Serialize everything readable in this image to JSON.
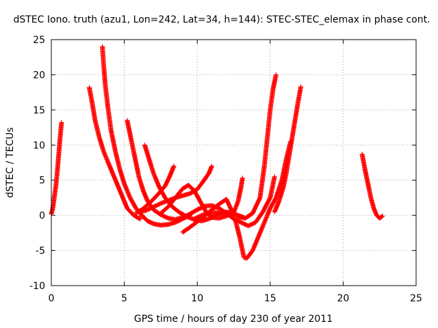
{
  "chart_data": {
    "type": "scatter",
    "title": "dSTEC Iono. truth (azu1, Lon=242, Lat=34, h=144): STEC-STEC_elemax in phase cont.",
    "xlabel": "GPS time / hours of day 230 of year 2011",
    "ylabel": "dSTEC  / TECUs",
    "xlim": [
      0,
      25
    ],
    "ylim": [
      -10,
      25
    ],
    "xticks": [
      0,
      5,
      10,
      15,
      20,
      25
    ],
    "yticks": [
      -10,
      -5,
      0,
      5,
      10,
      15,
      20,
      25
    ],
    "grid": true,
    "marker": "plus",
    "color": "#ff0000",
    "series": [
      {
        "points": [
          [
            0.0,
            0.2
          ],
          [
            0.1,
            1.0
          ],
          [
            0.2,
            2.5
          ],
          [
            0.3,
            4.0
          ],
          [
            0.4,
            6.0
          ],
          [
            0.5,
            8.5
          ],
          [
            0.6,
            11.0
          ],
          [
            0.7,
            13.2
          ]
        ]
      },
      {
        "points": [
          [
            2.6,
            18.2
          ],
          [
            2.8,
            16.0
          ],
          [
            3.0,
            13.5
          ],
          [
            3.3,
            11.0
          ],
          [
            3.6,
            9.0
          ],
          [
            4.0,
            7.0
          ],
          [
            4.3,
            5.5
          ],
          [
            4.6,
            4.0
          ],
          [
            4.9,
            2.5
          ],
          [
            5.2,
            1.0
          ],
          [
            5.6,
            0.1
          ],
          [
            5.9,
            -0.3
          ],
          [
            6.1,
            -0.5
          ]
        ]
      },
      {
        "points": [
          [
            3.5,
            24.0
          ],
          [
            3.6,
            21.0
          ],
          [
            3.7,
            18.5
          ],
          [
            3.9,
            15.0
          ],
          [
            4.1,
            12.0
          ],
          [
            4.4,
            9.0
          ],
          [
            4.7,
            6.5
          ],
          [
            5.0,
            4.5
          ],
          [
            5.4,
            2.5
          ],
          [
            5.8,
            1.0
          ],
          [
            6.2,
            0.0
          ],
          [
            6.6,
            -0.8
          ],
          [
            7.0,
            -1.2
          ],
          [
            7.5,
            -1.4
          ],
          [
            8.0,
            -1.3
          ],
          [
            8.5,
            -1.0
          ],
          [
            9.0,
            -0.5
          ],
          [
            9.5,
            0.0
          ]
        ]
      },
      {
        "points": [
          [
            5.2,
            13.5
          ],
          [
            5.4,
            11.5
          ],
          [
            5.6,
            9.5
          ],
          [
            5.8,
            7.5
          ],
          [
            6.0,
            5.5
          ],
          [
            6.3,
            3.5
          ],
          [
            6.6,
            2.0
          ],
          [
            7.0,
            0.8
          ],
          [
            7.5,
            0.1
          ],
          [
            8.0,
            -0.4
          ],
          [
            8.5,
            -0.6
          ],
          [
            9.0,
            -0.3
          ],
          [
            9.5,
            0.2
          ],
          [
            10.0,
            0.8
          ],
          [
            10.5,
            1.3
          ],
          [
            11.0,
            1.4
          ],
          [
            11.5,
            1.0
          ],
          [
            12.0,
            0.3
          ],
          [
            12.5,
            -0.5
          ],
          [
            13.0,
            -1.0
          ],
          [
            13.5,
            -1.5
          ],
          [
            14.0,
            -1.0
          ],
          [
            14.5,
            0.5
          ],
          [
            15.0,
            2.5
          ],
          [
            15.3,
            5.5
          ]
        ]
      },
      {
        "points": [
          [
            6.4,
            10.0
          ],
          [
            6.7,
            8.0
          ],
          [
            7.0,
            6.0
          ],
          [
            7.4,
            4.0
          ],
          [
            7.8,
            2.5
          ],
          [
            8.3,
            1.2
          ],
          [
            8.8,
            0.4
          ],
          [
            9.3,
            -0.2
          ],
          [
            9.8,
            -0.6
          ],
          [
            10.3,
            -0.8
          ],
          [
            10.8,
            -0.5
          ],
          [
            11.3,
            0.0
          ],
          [
            11.8,
            0.5
          ],
          [
            12.3,
            0.4
          ],
          [
            12.8,
            0.0
          ],
          [
            13.2,
            -0.3
          ]
        ]
      },
      {
        "points": [
          [
            5.8,
            0.4
          ],
          [
            6.2,
            0.8
          ],
          [
            6.6,
            1.5
          ],
          [
            7.0,
            2.3
          ],
          [
            7.4,
            3.2
          ],
          [
            7.8,
            4.2
          ],
          [
            8.1,
            5.5
          ],
          [
            8.4,
            7.0
          ]
        ]
      },
      {
        "points": [
          [
            6.0,
            0.5
          ],
          [
            6.5,
            0.7
          ],
          [
            7.0,
            1.2
          ],
          [
            7.5,
            1.7
          ],
          [
            8.0,
            2.1
          ],
          [
            8.5,
            2.5
          ],
          [
            9.0,
            2.8
          ],
          [
            9.5,
            3.1
          ],
          [
            10.0,
            3.7
          ],
          [
            10.4,
            4.8
          ],
          [
            10.8,
            6.0
          ],
          [
            11.0,
            7.0
          ]
        ]
      },
      {
        "points": [
          [
            7.5,
            0.3
          ],
          [
            8.0,
            1.2
          ],
          [
            8.5,
            2.5
          ],
          [
            9.0,
            3.8
          ],
          [
            9.4,
            4.3
          ],
          [
            9.8,
            3.5
          ],
          [
            10.2,
            2.0
          ],
          [
            10.6,
            0.5
          ],
          [
            11.0,
            -0.3
          ],
          [
            11.5,
            -0.4
          ],
          [
            12.0,
            -0.1
          ],
          [
            12.5,
            0.4
          ],
          [
            12.8,
            2.0
          ],
          [
            13.0,
            4.0
          ],
          [
            13.1,
            5.3
          ]
        ]
      },
      {
        "points": [
          [
            9.8,
            -0.5
          ],
          [
            10.3,
            0.0
          ],
          [
            10.8,
            0.3
          ],
          [
            11.3,
            0.4
          ],
          [
            11.8,
            0.2
          ],
          [
            12.3,
            0.0
          ],
          [
            12.6,
            -0.6
          ],
          [
            12.9,
            -3.0
          ],
          [
            13.2,
            -6.0
          ],
          [
            13.4,
            -6.1
          ],
          [
            13.8,
            -5.0
          ],
          [
            14.2,
            -3.0
          ],
          [
            14.6,
            -1.0
          ],
          [
            15.0,
            1.0
          ],
          [
            15.4,
            2.5
          ],
          [
            15.8,
            5.0
          ],
          [
            16.1,
            8.0
          ],
          [
            16.4,
            10.5
          ]
        ]
      },
      {
        "points": [
          [
            9.0,
            -2.4
          ],
          [
            9.5,
            -1.7
          ],
          [
            10.0,
            -0.9
          ],
          [
            10.5,
            -0.1
          ],
          [
            11.0,
            0.8
          ],
          [
            11.5,
            1.6
          ],
          [
            12.0,
            2.3
          ],
          [
            12.4,
            0.5
          ],
          [
            12.8,
            -0.2
          ],
          [
            13.3,
            -0.4
          ],
          [
            13.8,
            0.3
          ],
          [
            14.3,
            2.5
          ],
          [
            14.6,
            7.0
          ],
          [
            14.8,
            11.0
          ],
          [
            15.0,
            15.0
          ],
          [
            15.2,
            18.0
          ],
          [
            15.4,
            20.0
          ]
        ]
      },
      {
        "points": [
          [
            15.3,
            0.5
          ],
          [
            15.6,
            2.0
          ],
          [
            15.9,
            4.0
          ],
          [
            16.1,
            6.0
          ],
          [
            16.3,
            8.5
          ],
          [
            16.5,
            11.0
          ],
          [
            16.7,
            13.5
          ],
          [
            16.9,
            16.0
          ],
          [
            17.1,
            18.3
          ]
        ]
      },
      {
        "points": [
          [
            21.3,
            8.7
          ],
          [
            21.5,
            6.5
          ],
          [
            21.7,
            4.5
          ],
          [
            21.9,
            2.5
          ],
          [
            22.1,
            1.0
          ],
          [
            22.3,
            0.0
          ],
          [
            22.5,
            -0.4
          ],
          [
            22.7,
            -0.1
          ]
        ]
      }
    ]
  }
}
